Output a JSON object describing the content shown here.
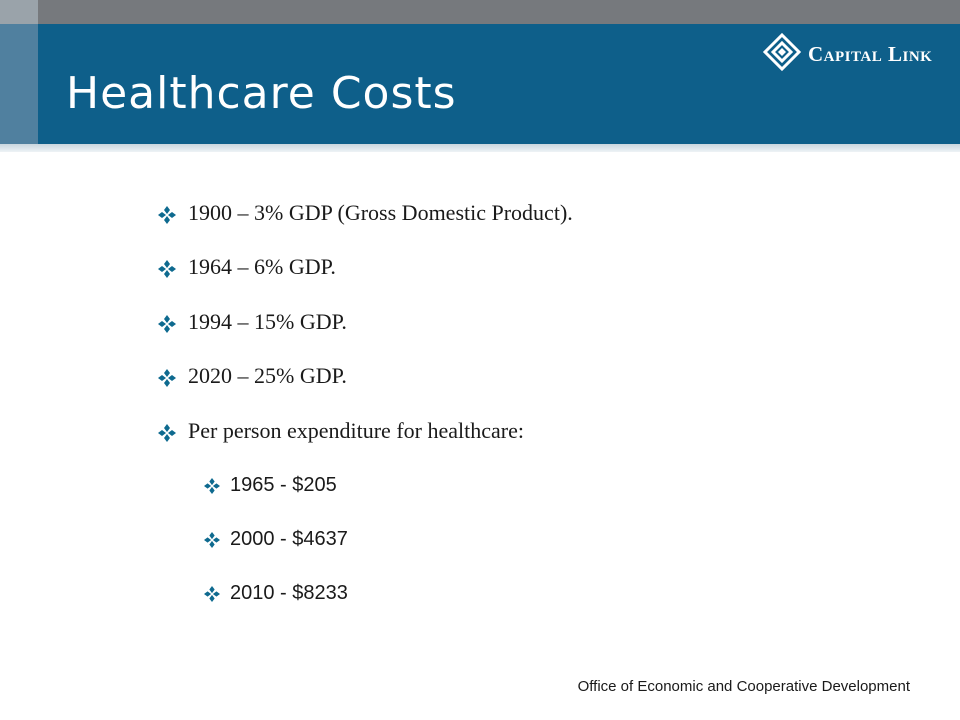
{
  "slide": {
    "title": "Healthcare Costs",
    "logo_text": "Capital Link",
    "bullets": [
      "1900 – 3% GDP (Gross Domestic Product).",
      "1964 – 6% GDP.",
      "1994 – 15% GDP.",
      "2020 – 25% GDP.",
      "Per person expenditure for healthcare:"
    ],
    "sub_bullets": [
      "1965 - $205",
      "2000 - $4637",
      "2010 - $8233"
    ],
    "footer": "Office of Economic and Cooperative Development"
  },
  "icons": {
    "bullet": "diamond-icon",
    "logo": "capital-link-logo-icon"
  },
  "colors": {
    "banner": "#0e5f8a",
    "bullet": "#0e6a8f",
    "topbar": "#76797d"
  }
}
